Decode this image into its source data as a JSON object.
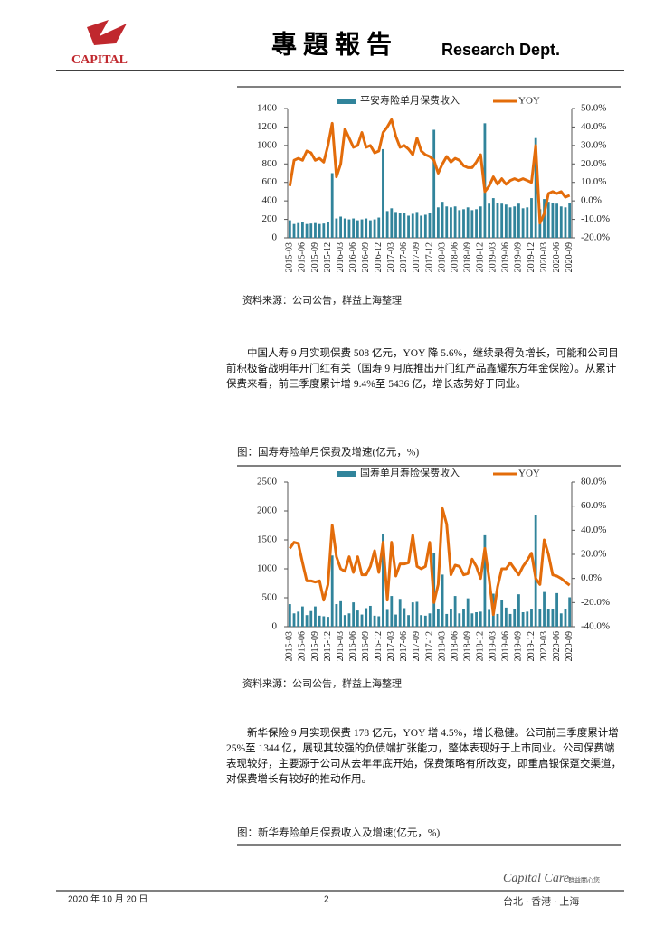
{
  "header": {
    "logo": "CAPITAL",
    "title": "專 題 報 告",
    "dept": "Research Dept."
  },
  "chart_data": [
    {
      "type": "combo",
      "categories": [
        "2015-03",
        null,
        null,
        "2015-06",
        null,
        null,
        "2015-09",
        null,
        null,
        "2015-12",
        null,
        null,
        "2016-03",
        null,
        null,
        "2016-06",
        null,
        null,
        "2016-09",
        null,
        null,
        "2016-12",
        null,
        null,
        "2017-03",
        null,
        null,
        "2017-06",
        null,
        null,
        "2017-09",
        null,
        null,
        "2017-12",
        null,
        null,
        "2018-03",
        null,
        null,
        "2018-06",
        null,
        null,
        "2018-09",
        null,
        null,
        "2018-12",
        null,
        null,
        "2019-03",
        null,
        null,
        "2019-06",
        null,
        null,
        "2019-09",
        null,
        null,
        "2019-12",
        null,
        null,
        "2020-03",
        null,
        null,
        "2020-06",
        null,
        null,
        "2020-09"
      ],
      "series": [
        {
          "name": "平安寿险单月保费收入",
          "color": "#31849b",
          "values": [
            190,
            150,
            160,
            170,
            150,
            155,
            160,
            150,
            155,
            170,
            700,
            210,
            230,
            210,
            200,
            210,
            190,
            200,
            210,
            190,
            200,
            220,
            960,
            290,
            320,
            280,
            270,
            270,
            240,
            260,
            280,
            240,
            250,
            270,
            1170,
            330,
            390,
            340,
            330,
            340,
            300,
            310,
            330,
            300,
            310,
            340,
            1240,
            370,
            430,
            380,
            370,
            360,
            330,
            340,
            370,
            320,
            330,
            430,
            1080,
            310,
            420,
            390,
            380,
            370,
            340,
            330,
            380
          ]
        },
        {
          "name": "YOY",
          "color": "#e36c0a",
          "axis": "y2",
          "values": [
            8,
            22,
            23,
            22,
            27,
            26,
            22,
            23,
            21,
            30,
            42,
            13,
            20,
            39,
            34,
            29,
            30,
            37,
            29,
            30,
            26,
            27,
            37,
            40,
            44,
            35,
            29,
            30,
            28,
            25,
            34,
            27,
            25,
            24,
            22,
            15,
            20,
            24,
            21,
            23,
            22,
            19,
            18,
            18,
            21,
            25,
            5,
            8,
            13,
            9,
            12,
            9,
            11,
            12,
            11,
            12,
            11,
            10,
            30,
            -12,
            -7,
            4,
            5,
            4,
            5,
            2,
            3
          ]
        }
      ],
      "ylim": [
        0,
        1400
      ],
      "yticks": [
        0,
        200,
        400,
        600,
        800,
        1000,
        1200,
        1400
      ],
      "y2lim": [
        -20,
        50
      ],
      "y2ticks": [
        {
          "value": -20,
          "label": "-20.0%"
        },
        {
          "value": -10,
          "label": "-10.0%"
        },
        {
          "value": 0,
          "label": "0.0%"
        },
        {
          "value": 10,
          "label": "10.0%"
        },
        {
          "value": 20,
          "label": "20.0%"
        },
        {
          "value": 30,
          "label": "30.0%"
        },
        {
          "value": 40,
          "label": "40.0%"
        },
        {
          "value": 50,
          "label": "50.0%"
        }
      ],
      "source": "资料来源：公司公告，群益上海整理"
    },
    {
      "type": "combo",
      "title": "图：国寿寿险单月保费及增速(亿元，%)",
      "categories": [
        "2015-03",
        null,
        null,
        "2015-06",
        null,
        null,
        "2015-09",
        null,
        null,
        "2015-12",
        null,
        null,
        "2016-03",
        null,
        null,
        "2016-06",
        null,
        null,
        "2016-09",
        null,
        null,
        "2016-12",
        null,
        null,
        "2017-03",
        null,
        null,
        "2017-06",
        null,
        null,
        "2017-09",
        null,
        null,
        "2017-12",
        null,
        null,
        "2018-03",
        null,
        null,
        "2018-06",
        null,
        null,
        "2018-09",
        null,
        null,
        "2018-12",
        null,
        null,
        "2019-03",
        null,
        null,
        "2019-06",
        null,
        null,
        "2019-09",
        null,
        null,
        "2019-12",
        null,
        null,
        "2020-03",
        null,
        null,
        "2020-06",
        null,
        null,
        "2020-09"
      ],
      "series": [
        {
          "name": "国寿单月寿险保费收入",
          "color": "#31849b",
          "values": [
            390,
            230,
            260,
            350,
            200,
            270,
            350,
            190,
            180,
            170,
            1230,
            390,
            440,
            200,
            230,
            420,
            280,
            210,
            320,
            360,
            190,
            180,
            1600,
            290,
            530,
            210,
            480,
            320,
            200,
            420,
            430,
            200,
            190,
            230,
            1270,
            300,
            900,
            220,
            300,
            530,
            230,
            300,
            490,
            230,
            250,
            260,
            1580,
            290,
            570,
            220,
            460,
            330,
            220,
            300,
            560,
            250,
            260,
            310,
            1930,
            300,
            600,
            300,
            310,
            580,
            230,
            300,
            508
          ]
        },
        {
          "name": "YOY",
          "color": "#e36c0a",
          "axis": "y2",
          "values": [
            25,
            30,
            29,
            13,
            -2,
            -2,
            -3,
            -2,
            -18,
            -5,
            44,
            18,
            8,
            6,
            18,
            5,
            18,
            3,
            3,
            10,
            23,
            5,
            30,
            -18,
            30,
            2,
            12,
            12,
            13,
            36,
            10,
            8,
            10,
            30,
            -20,
            -5,
            58,
            45,
            3,
            11,
            10,
            3,
            4,
            16,
            10,
            0,
            25,
            0,
            -30,
            -7,
            8,
            8,
            13,
            8,
            3,
            10,
            15,
            21,
            0,
            -5,
            32,
            20,
            3,
            2,
            0,
            -3,
            -5.6
          ]
        }
      ],
      "ylim": [
        0,
        2500
      ],
      "yticks": [
        0,
        500,
        1000,
        1500,
        2000,
        2500
      ],
      "y2lim": [
        -40,
        80
      ],
      "y2ticks": [
        {
          "value": -40,
          "label": "-40.0%"
        },
        {
          "value": -20,
          "label": "-20.0%"
        },
        {
          "value": 0,
          "label": "0.0%"
        },
        {
          "value": 20,
          "label": "20.0%"
        },
        {
          "value": 40,
          "label": "40.0%"
        },
        {
          "value": 60,
          "label": "60.0%"
        },
        {
          "value": 80,
          "label": "80.0%"
        }
      ],
      "source": "资料来源：公司公告，群益上海整理"
    }
  ],
  "paragraphs": [
    "中国人寿 9 月实现保费 508 亿元，YOY 降 5.6%，继续录得负增长，可能和公司目前积极备战明年开门红有关（国寿 9 月底推出开门红产品鑫耀东方年金保险）。从累计保费来看，前三季度累计增 9.4%至 5436 亿，增长态势好于同业。",
    "新华保险 9 月实现保费 178 亿元，YOY 增 4.5%，增长稳健。公司前三季度累计增 25%至 1344 亿，展现其较强的负债端扩张能力，整体表现好于上市同业。公司保费端表现较好，主要源于公司从去年年底开始，保费策略有所改变，即重启银保趸交渠道，对保费增长有较好的推动作用。"
  ],
  "figure_caption": "图：新华寿险单月保费收入及增速(亿元，%)",
  "footer": {
    "date": "2020 年 10 月 20 日",
    "page": "2",
    "brand": "Capital Care",
    "brand_cn": "群益關心您",
    "cities": "台北 · 香港 · 上海"
  }
}
